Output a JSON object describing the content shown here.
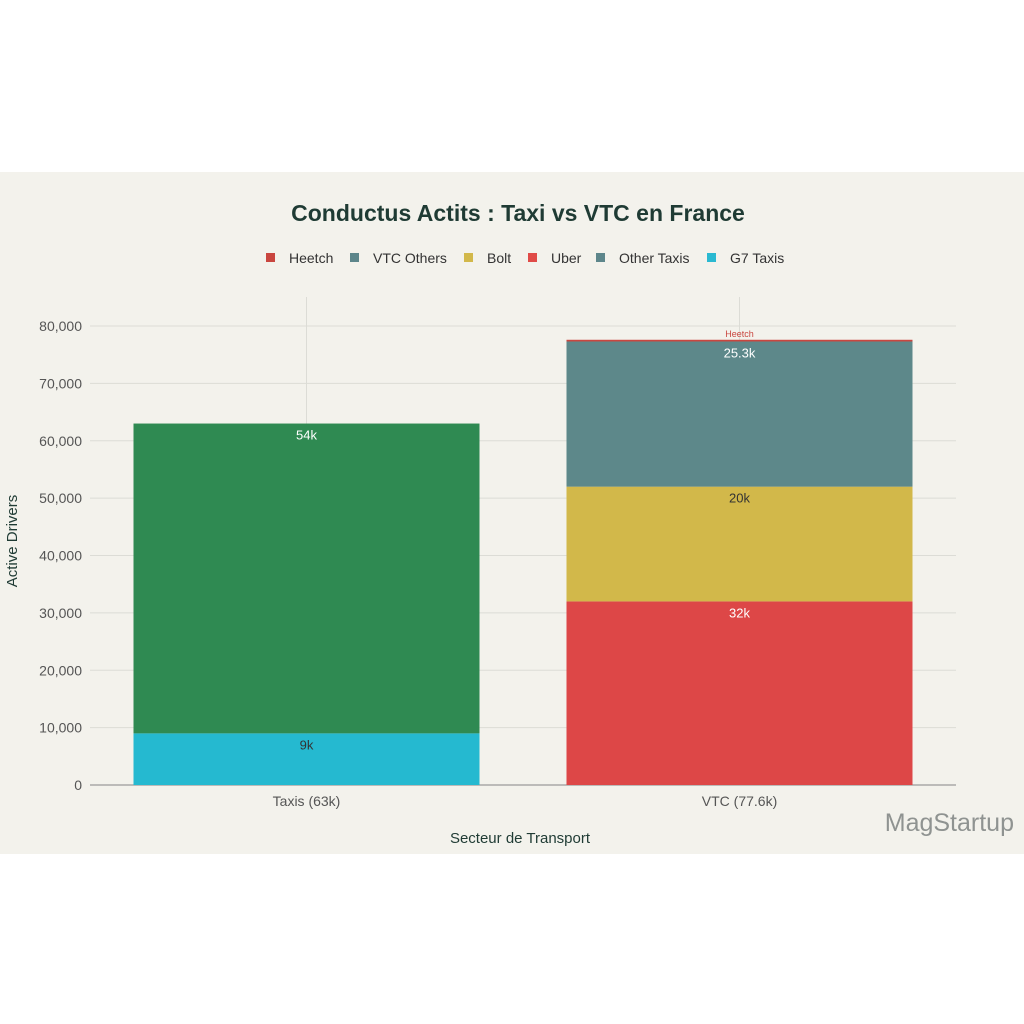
{
  "watermark": "MagStartup",
  "chart_data": {
    "type": "bar",
    "stacked": true,
    "title": "Conductus Actits : Taxi vs VTC en France",
    "xlabel": "Secteur de Transport",
    "ylabel": "Active Drivers",
    "ylim": [
      0,
      80000
    ],
    "yticks": [
      0,
      10000,
      20000,
      30000,
      40000,
      50000,
      60000,
      70000,
      80000
    ],
    "ytick_labels": [
      "0",
      "10,000",
      "20,000",
      "30,000",
      "40,000",
      "50,000",
      "60,000",
      "70,000",
      "80,000"
    ],
    "grid": true,
    "legend_position": "top",
    "categories": [
      "Taxis (63k)",
      "VTC (77.6k)"
    ],
    "legend": [
      {
        "name": "Heetch",
        "color": "#c9463f"
      },
      {
        "name": "VTC Others",
        "color": "#5d868b"
      },
      {
        "name": "Bolt",
        "color": "#d2b84a"
      },
      {
        "name": "Uber",
        "color": "#e04b47"
      },
      {
        "name": "Other Taxis",
        "color": "#5d868b"
      },
      {
        "name": "G7 Taxis",
        "color": "#2ab9d1"
      }
    ],
    "bars": [
      {
        "category": "Taxis (63k)",
        "segments": [
          {
            "name": "G7 Taxis",
            "value": 9000,
            "color": "#25b9d0",
            "label": "9k",
            "label_color": "#333333"
          },
          {
            "name": "Other Taxis",
            "value": 54000,
            "color": "#2f8a52",
            "label": "54k",
            "label_color": "#ffffff"
          }
        ]
      },
      {
        "category": "VTC (77.6k)",
        "segments": [
          {
            "name": "Uber",
            "value": 32000,
            "color": "#dd4747",
            "label": "32k",
            "label_color": "#ffffff"
          },
          {
            "name": "Bolt",
            "value": 20000,
            "color": "#d2b84a",
            "label": "20k",
            "label_color": "#333333"
          },
          {
            "name": "VTC Others",
            "value": 25300,
            "color": "#5d888a",
            "label": "25.3k",
            "label_color": "#ffffff"
          },
          {
            "name": "Heetch",
            "value": 300,
            "color": "#c9463f",
            "label": "Heetch",
            "label_color": "#c9463f"
          }
        ]
      }
    ]
  }
}
